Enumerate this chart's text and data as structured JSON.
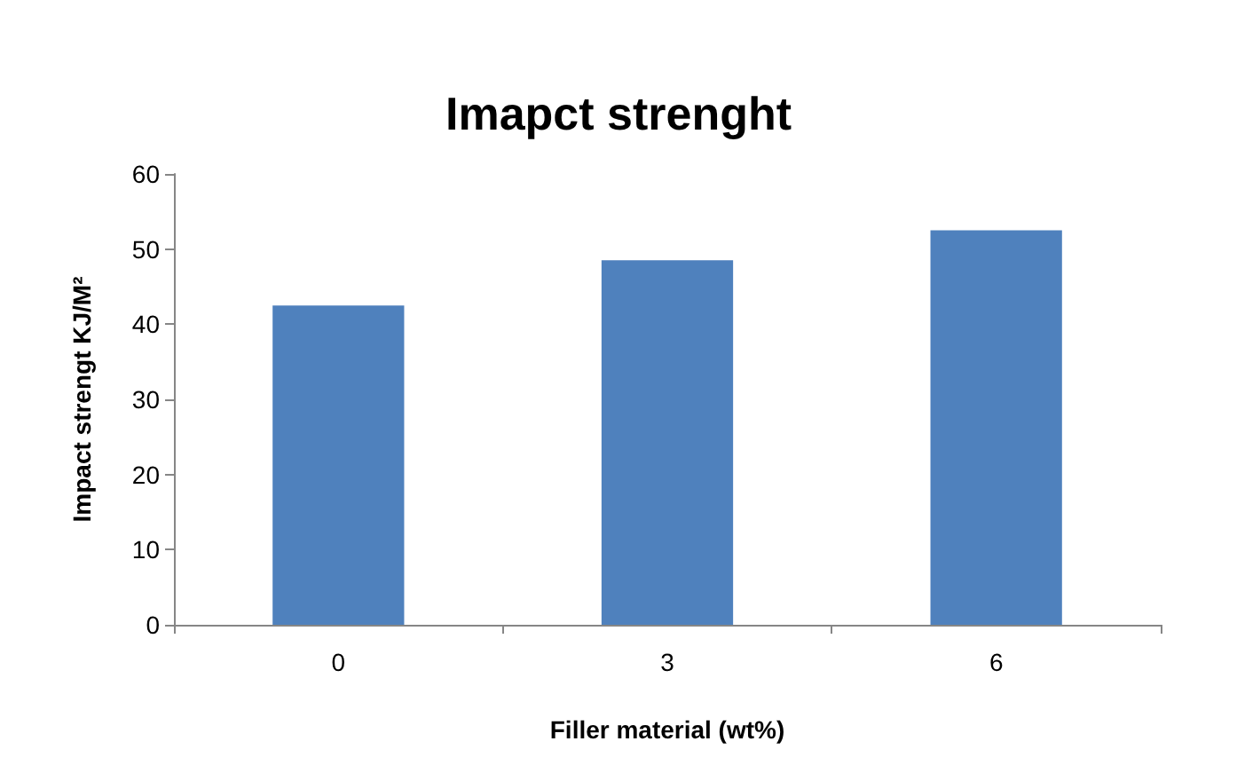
{
  "chart_data": {
    "type": "bar",
    "title": "Imapct strenght",
    "xlabel": "Filler material (wt%)",
    "ylabel": "Impact strengt KJ/M²",
    "categories": [
      "0",
      "3",
      "6"
    ],
    "values": [
      42.5,
      48.5,
      52.5
    ],
    "color": "#4f81bd",
    "ylim": [
      0,
      60
    ],
    "yticks": [
      0,
      10,
      20,
      30,
      40,
      50,
      60
    ],
    "grid": false
  }
}
